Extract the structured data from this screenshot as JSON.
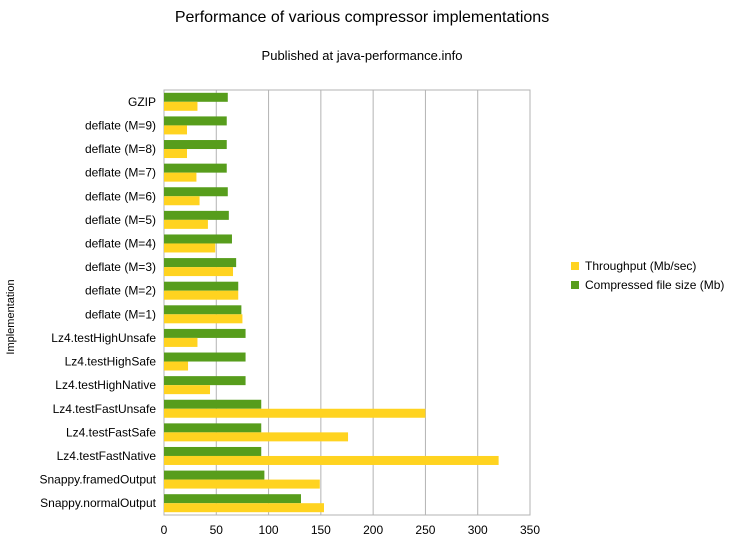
{
  "chart_data": {
    "type": "bar",
    "orientation": "horizontal",
    "title": "Performance of various compressor implementations",
    "subtitle": "Published at java-performance.info",
    "ylabel": "Implementation",
    "xlabel": "",
    "xlim": [
      0,
      350
    ],
    "xticks": [
      0,
      50,
      100,
      150,
      200,
      250,
      300,
      350
    ],
    "grid": true,
    "legend_position": "right",
    "categories": [
      "GZIP",
      "deflate (M=9)",
      "deflate (M=8)",
      "deflate (M=7)",
      "deflate (M=6)",
      "deflate (M=5)",
      "deflate (M=4)",
      "deflate (M=3)",
      "deflate (M=2)",
      "deflate (M=1)",
      "Lz4.testHighUnsafe",
      "Lz4.testHighSafe",
      "Lz4.testHighNative",
      "Lz4.testFastUnsafe",
      "Lz4.testFastSafe",
      "Lz4.testFastNative",
      "Snappy.framedOutput",
      "Snappy.normalOutput"
    ],
    "series": [
      {
        "name": "Throughput (Mb/sec)",
        "color": "#ffd320",
        "values": [
          32,
          22,
          22,
          31,
          34,
          42,
          49,
          66,
          71,
          75,
          32,
          23,
          44,
          250,
          176,
          320,
          149,
          153
        ]
      },
      {
        "name": "Compressed file size (Mb)",
        "color": "#579d1c",
        "values": [
          61,
          60,
          60,
          60,
          61,
          62,
          65,
          69,
          71,
          74,
          78,
          78,
          78,
          93,
          93,
          93,
          96,
          131
        ]
      }
    ]
  }
}
